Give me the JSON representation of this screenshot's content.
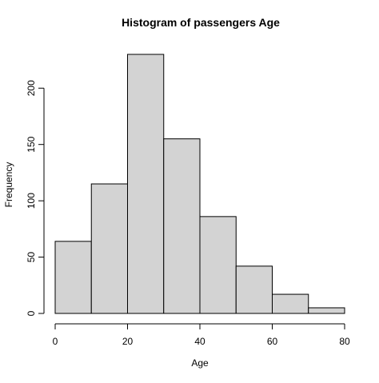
{
  "chart_data": {
    "type": "bar",
    "subtype": "histogram",
    "title": "Histogram of passengers Age",
    "xlabel": "Age",
    "ylabel": "Frequency",
    "bins": [
      {
        "from": 0,
        "to": 10,
        "value": 64
      },
      {
        "from": 10,
        "to": 20,
        "value": 115
      },
      {
        "from": 20,
        "to": 30,
        "value": 230
      },
      {
        "from": 30,
        "to": 40,
        "value": 155
      },
      {
        "from": 40,
        "to": 50,
        "value": 86
      },
      {
        "from": 50,
        "to": 60,
        "value": 42
      },
      {
        "from": 60,
        "to": 70,
        "value": 17
      },
      {
        "from": 70,
        "to": 80,
        "value": 5
      }
    ],
    "xlim": [
      0,
      80
    ],
    "ylim": [
      0,
      230
    ],
    "x_ticks": [
      0,
      20,
      40,
      60,
      80
    ],
    "y_ticks": [
      0,
      50,
      100,
      150,
      200
    ],
    "grid": false,
    "bar_fill": "#d3d3d3",
    "bar_stroke": "#000000"
  }
}
